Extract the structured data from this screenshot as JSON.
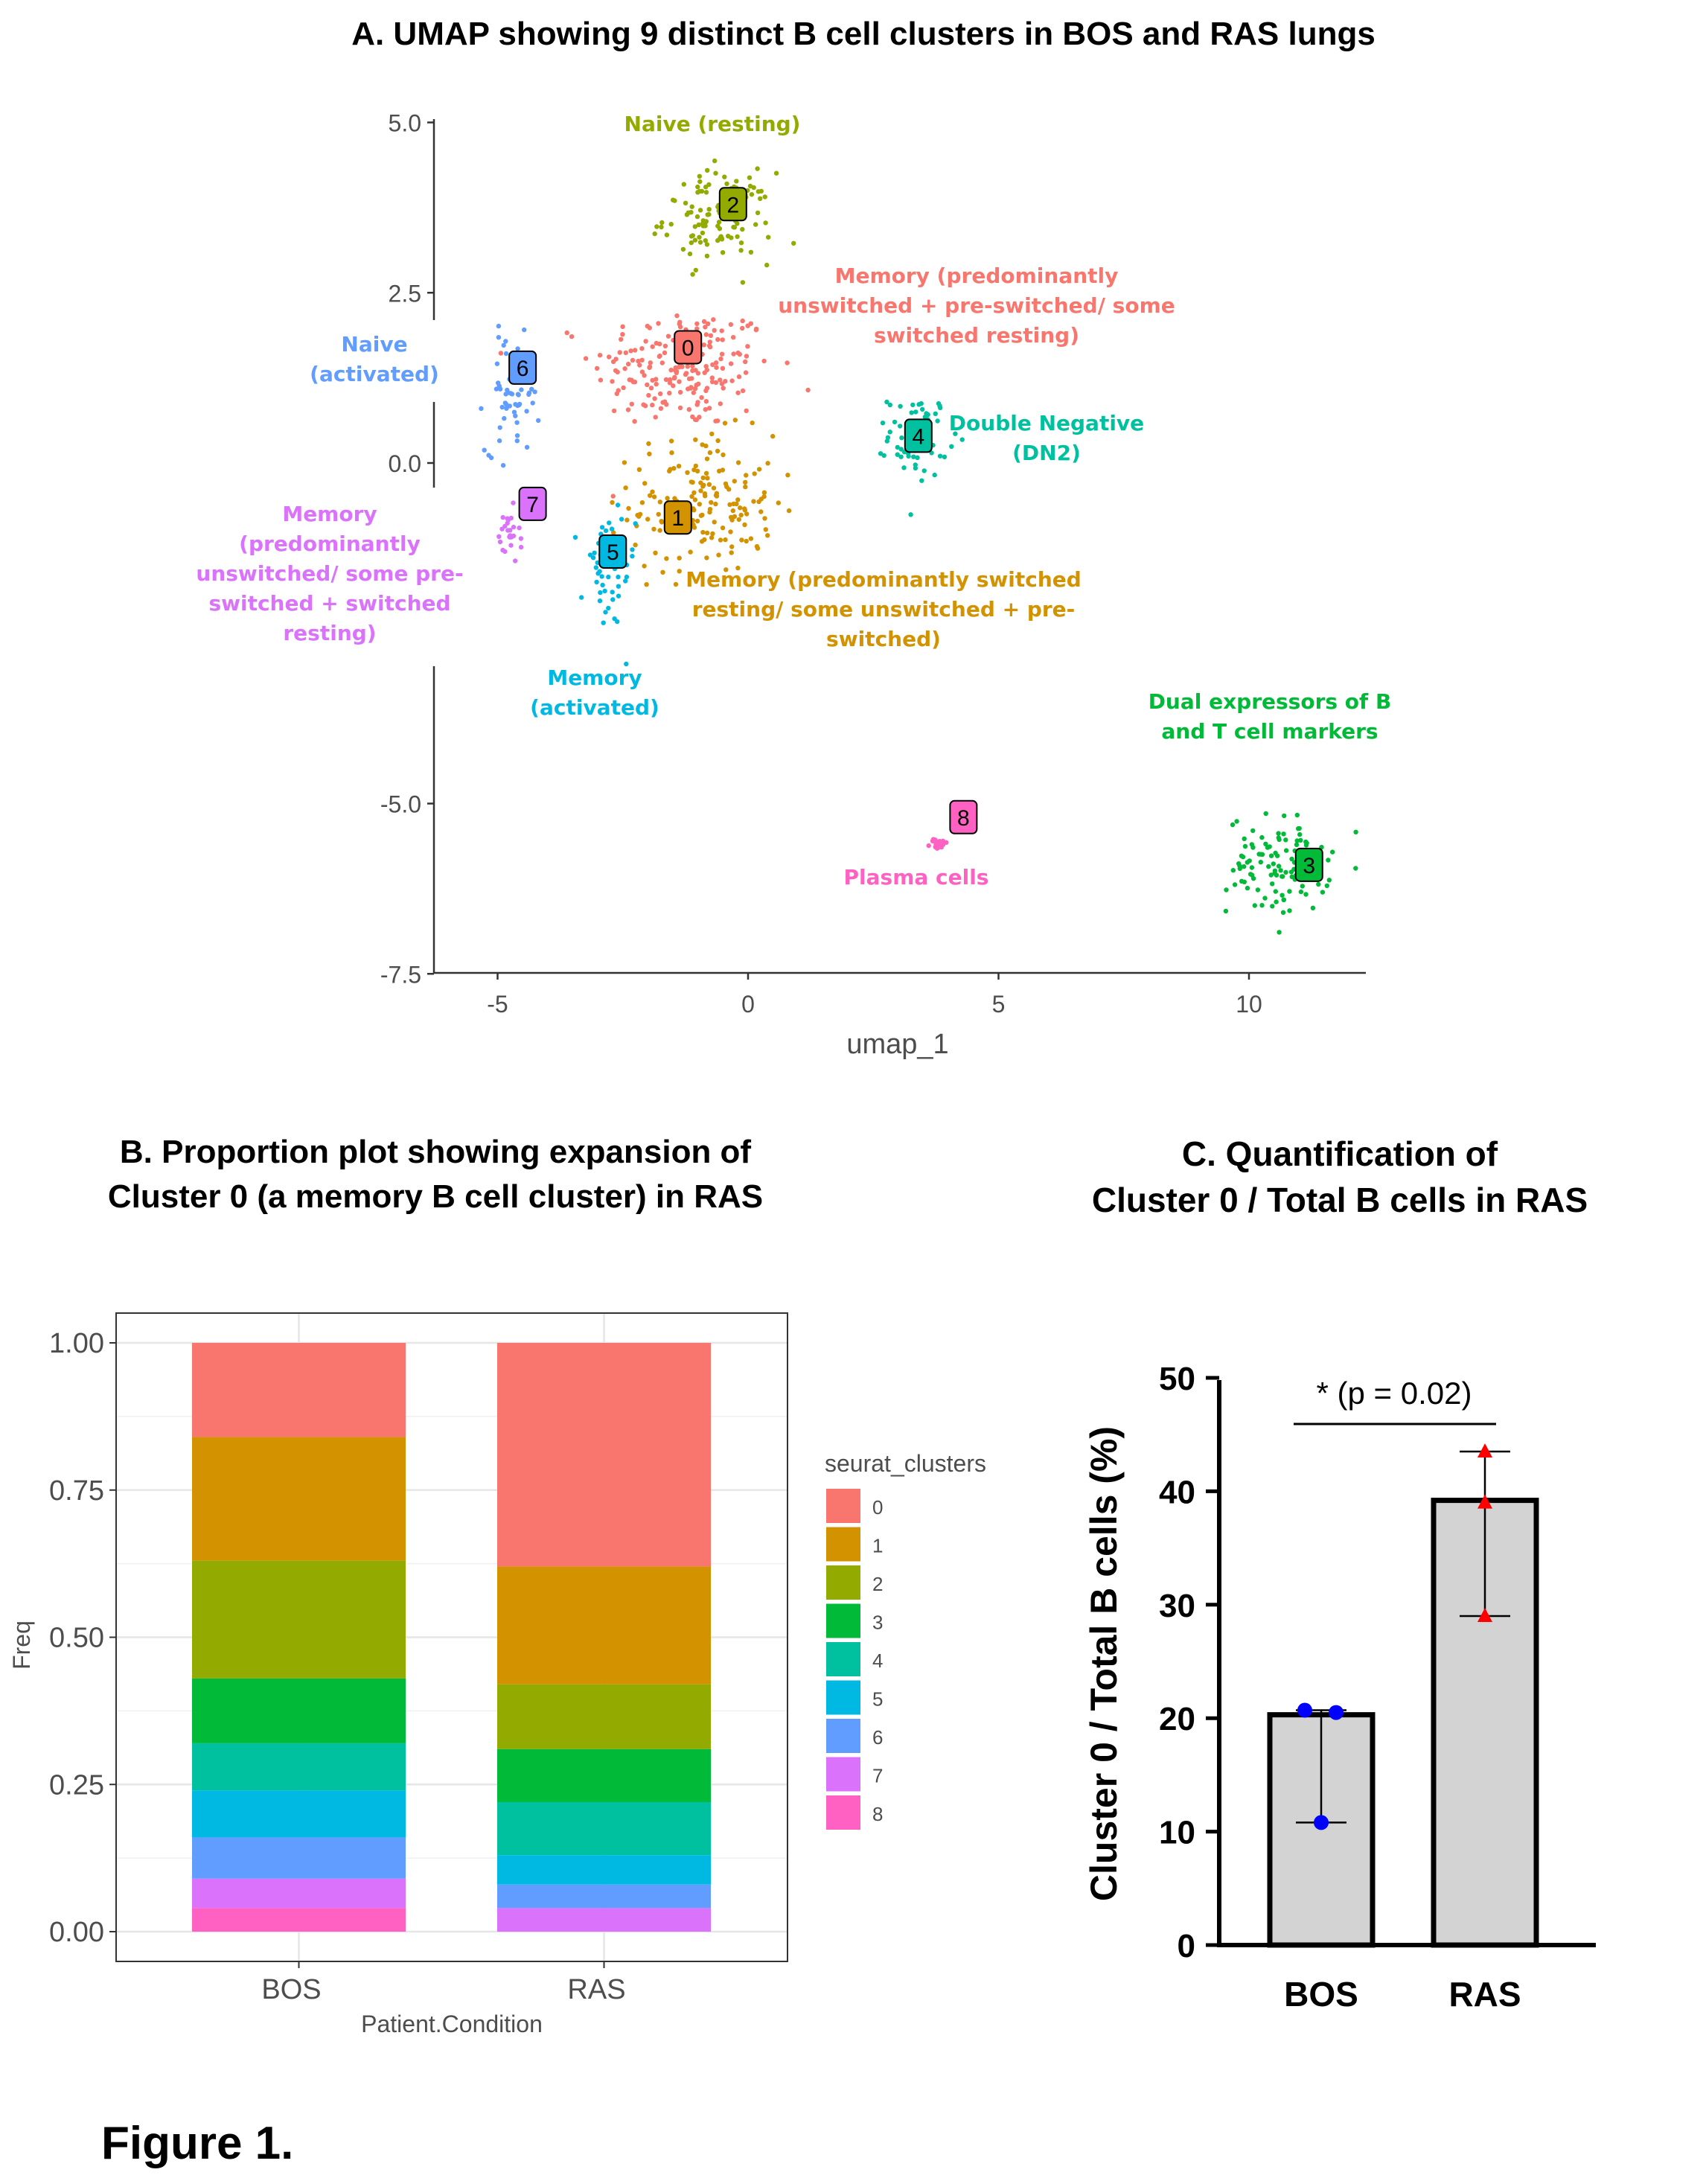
{
  "figure_label": "Figure 1.",
  "chart_data": [
    {
      "type": "scatter",
      "title": "A.  UMAP showing 9 distinct B cell clusters in BOS and RAS lungs",
      "xlabel": "umap_1",
      "ylabel": "",
      "xlim": [
        -6.3,
        12.5
      ],
      "ylim": [
        -7.5,
        5.0
      ],
      "xticks": [
        "-5",
        "0",
        "5",
        "10"
      ],
      "yticks": [
        "5.0",
        "2.5",
        "0.0",
        "-5.0",
        "-7.5"
      ],
      "grid": false,
      "clusters": [
        {
          "id": "0",
          "x": -1.2,
          "y": 1.7,
          "color": "#F8766D",
          "annotation": [
            "Memory (predominantly",
            "unswitched + pre-switched/ some",
            "switched resting)"
          ]
        },
        {
          "id": "1",
          "x": -1.4,
          "y": -0.8,
          "color": "#D39200",
          "annotation": [
            "Memory (predominantly switched",
            "resting/ some unswitched + pre-",
            "switched)"
          ]
        },
        {
          "id": "2",
          "x": -0.3,
          "y": 3.8,
          "color": "#93AA00",
          "annotation": [
            "Naive (resting)"
          ]
        },
        {
          "id": "3",
          "x": 11.2,
          "y": -5.9,
          "color": "#00BA38",
          "annotation": [
            "Dual expressors of B",
            "and T cell markers"
          ]
        },
        {
          "id": "4",
          "x": 3.4,
          "y": 0.4,
          "color": "#00C19F",
          "annotation": [
            "Double Negative",
            "(DN2)"
          ]
        },
        {
          "id": "5",
          "x": -2.7,
          "y": -1.3,
          "color": "#00B9E3",
          "annotation": [
            "Memory",
            "(activated)"
          ]
        },
        {
          "id": "6",
          "x": -4.5,
          "y": 1.4,
          "color": "#619CFF",
          "annotation": [
            "Naive",
            "(activated)"
          ]
        },
        {
          "id": "7",
          "x": -4.3,
          "y": -0.6,
          "color": "#DB72FB",
          "annotation": [
            "Memory",
            "(predominantly",
            "unswitched/ some pre-",
            "switched + switched",
            "resting)"
          ]
        },
        {
          "id": "8",
          "x": 4.3,
          "y": -5.2,
          "color": "#FF61C3",
          "annotation": [
            "Plasma cells"
          ]
        }
      ]
    },
    {
      "type": "bar",
      "stacked": true,
      "title": "B. Proportion plot showing expansion of\nCluster 0 (a memory B cell cluster) in RAS",
      "xlabel": "Patient.Condition",
      "ylabel": "Freq",
      "categories": [
        "BOS",
        "RAS"
      ],
      "ylim": [
        0,
        1
      ],
      "yticks": [
        "0.00",
        "0.25",
        "0.50",
        "0.75",
        "1.00"
      ],
      "grid": true,
      "legend_title": "seurat_clusters",
      "legend_position": "right",
      "series": [
        {
          "name": "0",
          "color": "#F8766D",
          "values": [
            0.16,
            0.38
          ]
        },
        {
          "name": "1",
          "color": "#D39200",
          "values": [
            0.21,
            0.2
          ]
        },
        {
          "name": "2",
          "color": "#93AA00",
          "values": [
            0.2,
            0.11
          ]
        },
        {
          "name": "3",
          "color": "#00BA38",
          "values": [
            0.11,
            0.09
          ]
        },
        {
          "name": "4",
          "color": "#00C19F",
          "values": [
            0.08,
            0.09
          ]
        },
        {
          "name": "5",
          "color": "#00B9E3",
          "values": [
            0.08,
            0.05
          ]
        },
        {
          "name": "6",
          "color": "#619CFF",
          "values": [
            0.07,
            0.04
          ]
        },
        {
          "name": "7",
          "color": "#DB72FB",
          "values": [
            0.05,
            0.04
          ]
        },
        {
          "name": "8",
          "color": "#FF61C3",
          "values": [
            0.04,
            0.0
          ]
        }
      ]
    },
    {
      "type": "bar",
      "title": "C. Quantification of\nCluster 0 / Total B cells in RAS",
      "xlabel": "",
      "ylabel": "Cluster 0 / Total B cells (%)",
      "categories": [
        "BOS",
        "RAS"
      ],
      "values": [
        20.3,
        39.2
      ],
      "error_top": [
        20.7,
        43.5
      ],
      "error_bottom": [
        10.8,
        29.0
      ],
      "points": [
        [
          20.7,
          20.5,
          10.8
        ],
        [
          43.5,
          39.0,
          29.0
        ]
      ],
      "point_colors": [
        "#0000FF",
        "#FF0000"
      ],
      "bar_color": "#D3D3D3",
      "ylim": [
        0,
        50
      ],
      "yticks": [
        "0",
        "10",
        "20",
        "30",
        "40",
        "50"
      ],
      "significance": "* (p = 0.02)"
    }
  ]
}
